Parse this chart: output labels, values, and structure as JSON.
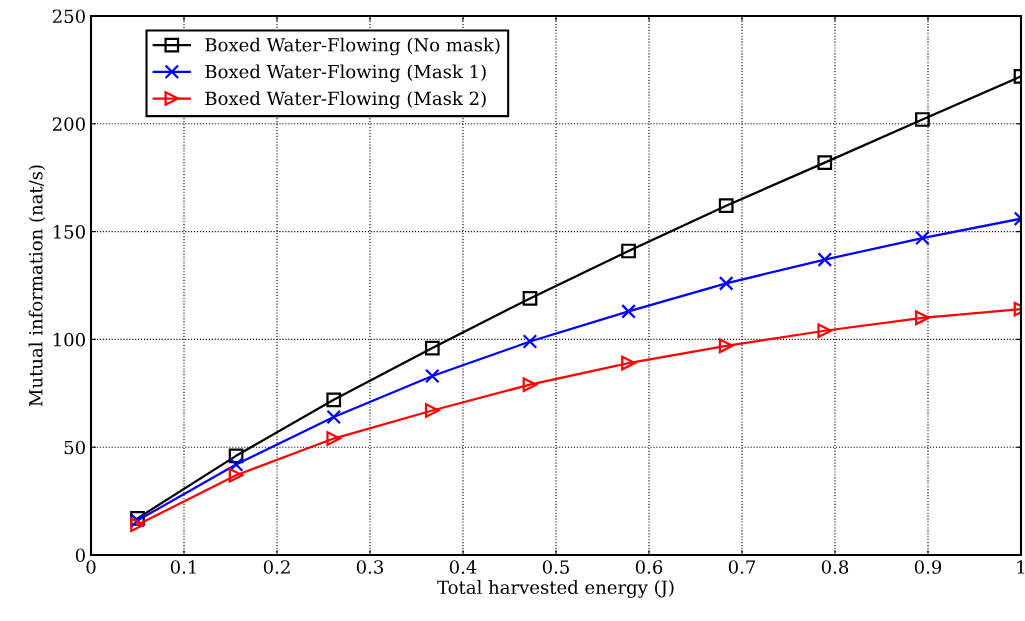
{
  "chart_data": {
    "type": "line",
    "xlabel": "Total harvested energy (J)",
    "ylabel": "Mutual information (nat/s)",
    "x": [
      0.05,
      0.156,
      0.261,
      0.367,
      0.472,
      0.578,
      0.683,
      0.789,
      0.894,
      1.0
    ],
    "series": [
      {
        "name": "Boxed Water-Flowing (No mask)",
        "color": "#000000",
        "marker": "square",
        "values": [
          17,
          46,
          72,
          96,
          119,
          141,
          162,
          182,
          202,
          222
        ]
      },
      {
        "name": "Boxed Water-Flowing (Mask 1)",
        "color": "#0000ff",
        "marker": "cross",
        "values": [
          16,
          42,
          64,
          83,
          99,
          113,
          126,
          137,
          147,
          156
        ]
      },
      {
        "name": "Boxed Water-Flowing (Mask 2)",
        "color": "#ff0000",
        "marker": "triangle",
        "values": [
          14,
          37,
          54,
          67,
          79,
          89,
          97,
          104,
          110,
          114
        ]
      }
    ],
    "xlim": [
      0,
      1
    ],
    "xticks": [
      0,
      0.1,
      0.2,
      0.3,
      0.4,
      0.5,
      0.6,
      0.7,
      0.8,
      0.9,
      1
    ],
    "ylim": [
      0,
      250
    ],
    "yticks": [
      0,
      50,
      100,
      150,
      200,
      250
    ],
    "grid": true,
    "legend": "top left",
    "line_style": "solid"
  }
}
